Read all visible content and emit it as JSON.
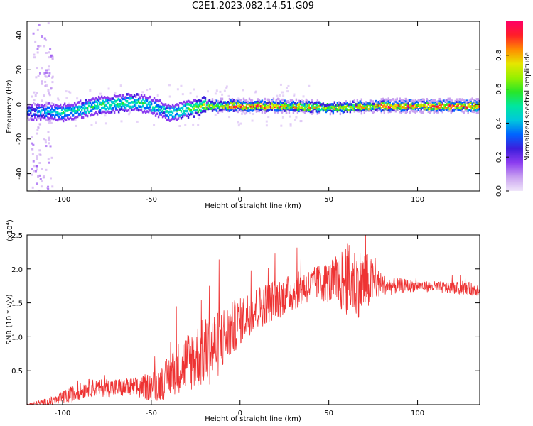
{
  "title": "C2E1.2023.082.14.51.G09",
  "colors": {
    "signal": "#ee3333",
    "axis": "#000000",
    "colormap": [
      "#f0e6fa",
      "#c8a0f0",
      "#8c3cf0",
      "#3c1edc",
      "#0064ff",
      "#00c8dc",
      "#00e6a0",
      "#28e628",
      "#96f000",
      "#e6e600",
      "#ff8c00",
      "#ff1e28",
      "#ff0064"
    ]
  },
  "chart_data": [
    {
      "type": "heatmap",
      "title": "C2E1.2023.082.14.51.G09",
      "xlabel": "Height of straight line (km)",
      "ylabel": "Frequency (Hz)",
      "xlim": [
        -120,
        135
      ],
      "ylim": [
        -50,
        48
      ],
      "x_ticks": [
        "-100",
        "-50",
        "0",
        "50",
        "100"
      ],
      "y_ticks": [
        "-40",
        "-20",
        "0",
        "20",
        "40"
      ],
      "colorbar": {
        "label": "Normalized spectral amplitude",
        "range": [
          0,
          1
        ],
        "ticks": [
          "0.0",
          "0.2",
          "0.4",
          "0.6",
          "0.8"
        ]
      },
      "ridge": {
        "description_points_x": [
          -118,
          -100,
          -80,
          -60,
          -50,
          -40,
          -20,
          0,
          20,
          50,
          80,
          100,
          135
        ],
        "center_frequency_hz": [
          -3,
          -4,
          0,
          2,
          0,
          -4,
          0,
          0,
          0,
          -1,
          0,
          0,
          0
        ],
        "peak_amplitude": [
          0.35,
          0.5,
          0.55,
          0.55,
          0.5,
          0.45,
          0.7,
          0.9,
          0.9,
          0.75,
          0.95,
          0.95,
          0.95
        ]
      }
    },
    {
      "type": "line",
      "xlabel": "Height of straight line (km)",
      "ylabel": "SNR (10 * v/v)",
      "yscale_label": "(x10",
      "yscale_exp": "4",
      "yscale_close": ")",
      "xlim": [
        -120,
        135
      ],
      "ylim": [
        0,
        2.5
      ],
      "x_ticks": [
        "-100",
        "-50",
        "0",
        "50",
        "100"
      ],
      "y_ticks": [
        "0.5",
        "1.0",
        "1.5",
        "2.0",
        "2.5"
      ],
      "series": [
        {
          "trend_x": [
            -120,
            -105,
            -95,
            -85,
            -70,
            -55,
            -45,
            -35,
            -25,
            -15,
            -5,
            5,
            15,
            25,
            35,
            45,
            55,
            60,
            65,
            70,
            75,
            85,
            100,
            120,
            135
          ],
          "trend_y": [
            0.0,
            0.05,
            0.15,
            0.25,
            0.25,
            0.25,
            0.3,
            0.55,
            0.7,
            0.85,
            1.1,
            1.35,
            1.5,
            1.6,
            1.72,
            1.8,
            1.8,
            1.85,
            1.8,
            1.8,
            1.8,
            1.75,
            1.75,
            1.72,
            1.7
          ],
          "noise_amp_x": [
            -120,
            -95,
            -60,
            -45,
            -30,
            -15,
            0,
            20,
            40,
            50,
            60,
            70,
            80,
            100,
            135
          ],
          "noise_amp_y": [
            0.01,
            0.12,
            0.15,
            0.25,
            0.45,
            0.55,
            0.35,
            0.3,
            0.25,
            0.3,
            0.55,
            0.5,
            0.15,
            0.08,
            0.1
          ]
        }
      ]
    }
  ]
}
